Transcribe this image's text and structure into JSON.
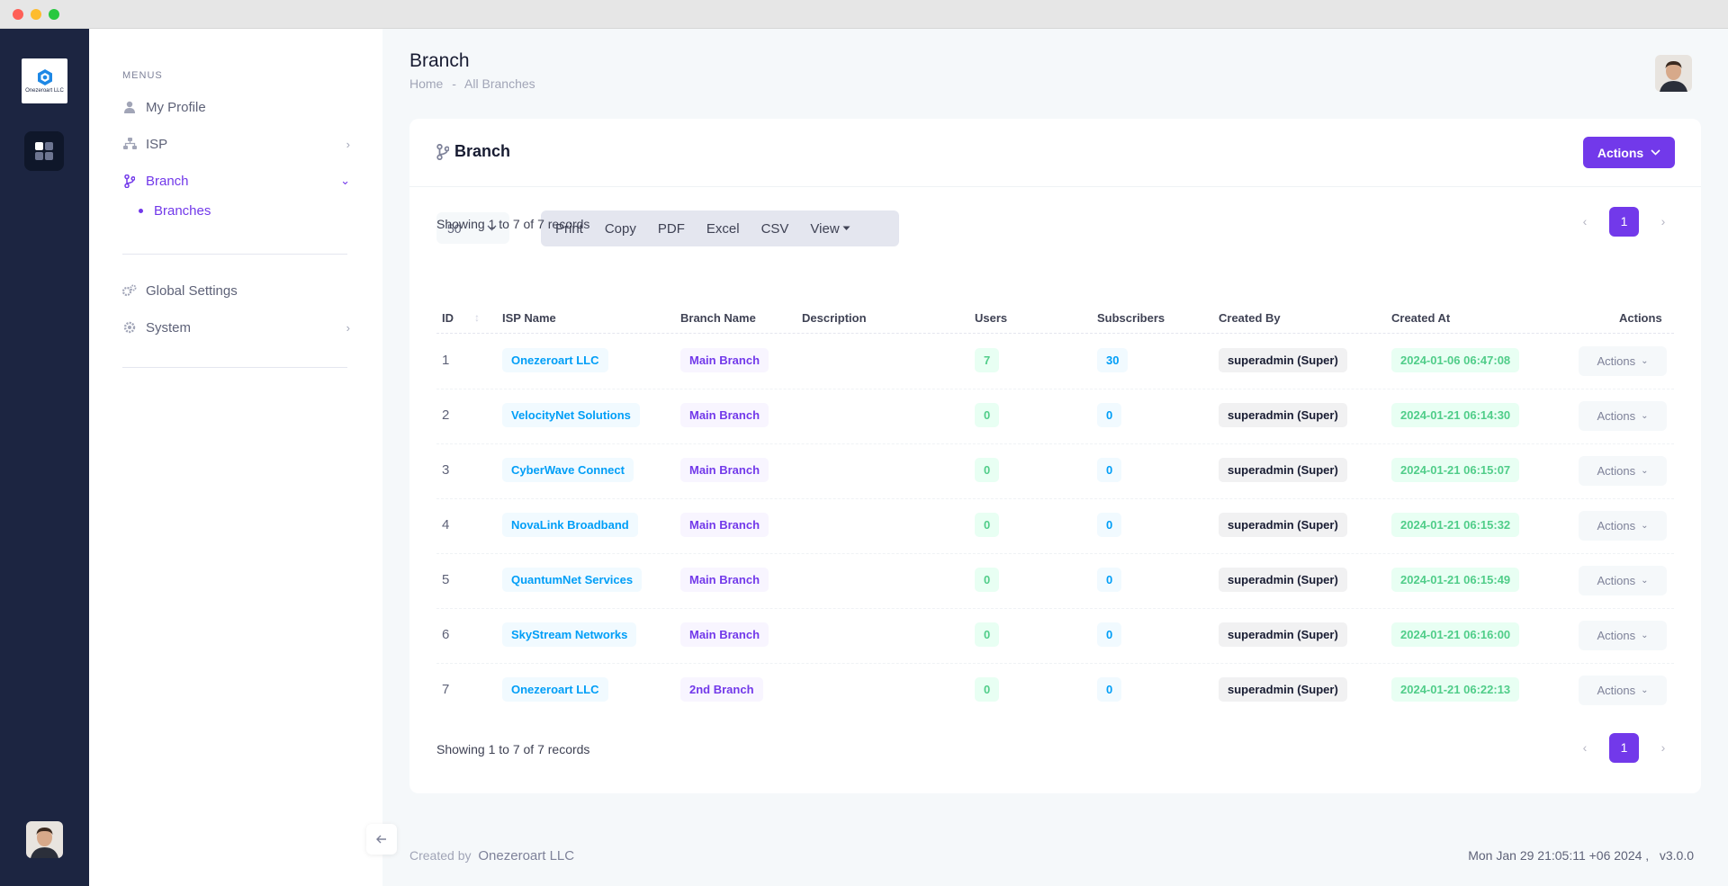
{
  "app": {
    "logo_text": "Onezeroart LLC"
  },
  "menu": {
    "heading": "MENUS",
    "items": [
      {
        "label": "My Profile",
        "icon": "user-icon"
      },
      {
        "label": "ISP",
        "icon": "sitemap-icon",
        "arrow": "›"
      },
      {
        "label": "Branch",
        "icon": "branch-icon",
        "arrow": "⌄"
      },
      {
        "label": "Global Settings",
        "icon": "cogs-icon"
      },
      {
        "label": "System",
        "icon": "gear-icon",
        "arrow": "›"
      }
    ],
    "sub_items": [
      {
        "label": "Branches"
      }
    ]
  },
  "header": {
    "title": "Branch",
    "breadcrumb": [
      "Home",
      "-",
      "All Branches"
    ]
  },
  "card": {
    "title": "Branch",
    "actions_label": "Actions",
    "page_length": "50",
    "export_buttons": [
      "Print",
      "Copy",
      "PDF",
      "Excel",
      "CSV",
      "View"
    ],
    "showing_text": "Showing 1 to 7 of 7 records",
    "current_page": "1",
    "prev_arrow": "‹",
    "next_arrow": "›"
  },
  "table": {
    "columns": [
      "ID",
      "ISP Name",
      "Branch Name",
      "Description",
      "Users",
      "Subscribers",
      "Created By",
      "Created At",
      "Actions"
    ],
    "row_action_label": "Actions",
    "rows": [
      {
        "id": "1",
        "isp": "Onezeroart LLC",
        "branch": "Main Branch",
        "description": "",
        "users": "7",
        "subscribers": "30",
        "created_by": "superadmin (Super)",
        "created_at": "2024-01-06 06:47:08"
      },
      {
        "id": "2",
        "isp": "VelocityNet Solutions",
        "branch": "Main Branch",
        "description": "",
        "users": "0",
        "subscribers": "0",
        "created_by": "superadmin (Super)",
        "created_at": "2024-01-21 06:14:30"
      },
      {
        "id": "3",
        "isp": "CyberWave Connect",
        "branch": "Main Branch",
        "description": "",
        "users": "0",
        "subscribers": "0",
        "created_by": "superadmin (Super)",
        "created_at": "2024-01-21 06:15:07"
      },
      {
        "id": "4",
        "isp": "NovaLink Broadband",
        "branch": "Main Branch",
        "description": "",
        "users": "0",
        "subscribers": "0",
        "created_by": "superadmin (Super)",
        "created_at": "2024-01-21 06:15:32"
      },
      {
        "id": "5",
        "isp": "QuantumNet Services",
        "branch": "Main Branch",
        "description": "",
        "users": "0",
        "subscribers": "0",
        "created_by": "superadmin (Super)",
        "created_at": "2024-01-21 06:15:49"
      },
      {
        "id": "6",
        "isp": "SkyStream Networks",
        "branch": "Main Branch",
        "description": "",
        "users": "0",
        "subscribers": "0",
        "created_by": "superadmin (Super)",
        "created_at": "2024-01-21 06:16:00"
      },
      {
        "id": "7",
        "isp": "Onezeroart LLC",
        "branch": "2nd Branch",
        "description": "",
        "users": "0",
        "subscribers": "0",
        "created_by": "superadmin (Super)",
        "created_at": "2024-01-21 06:22:13"
      }
    ]
  },
  "footer": {
    "created_by_label": "Created by",
    "brand": "Onezeroart LLC",
    "datetime_version": "Mon Jan 29 21:05:11 +06 2024 ,   v3.0.0"
  },
  "colors": {
    "primary": "#7239ea",
    "aside": "#1c2541",
    "info": "#009ef7",
    "success": "#50cd89"
  }
}
